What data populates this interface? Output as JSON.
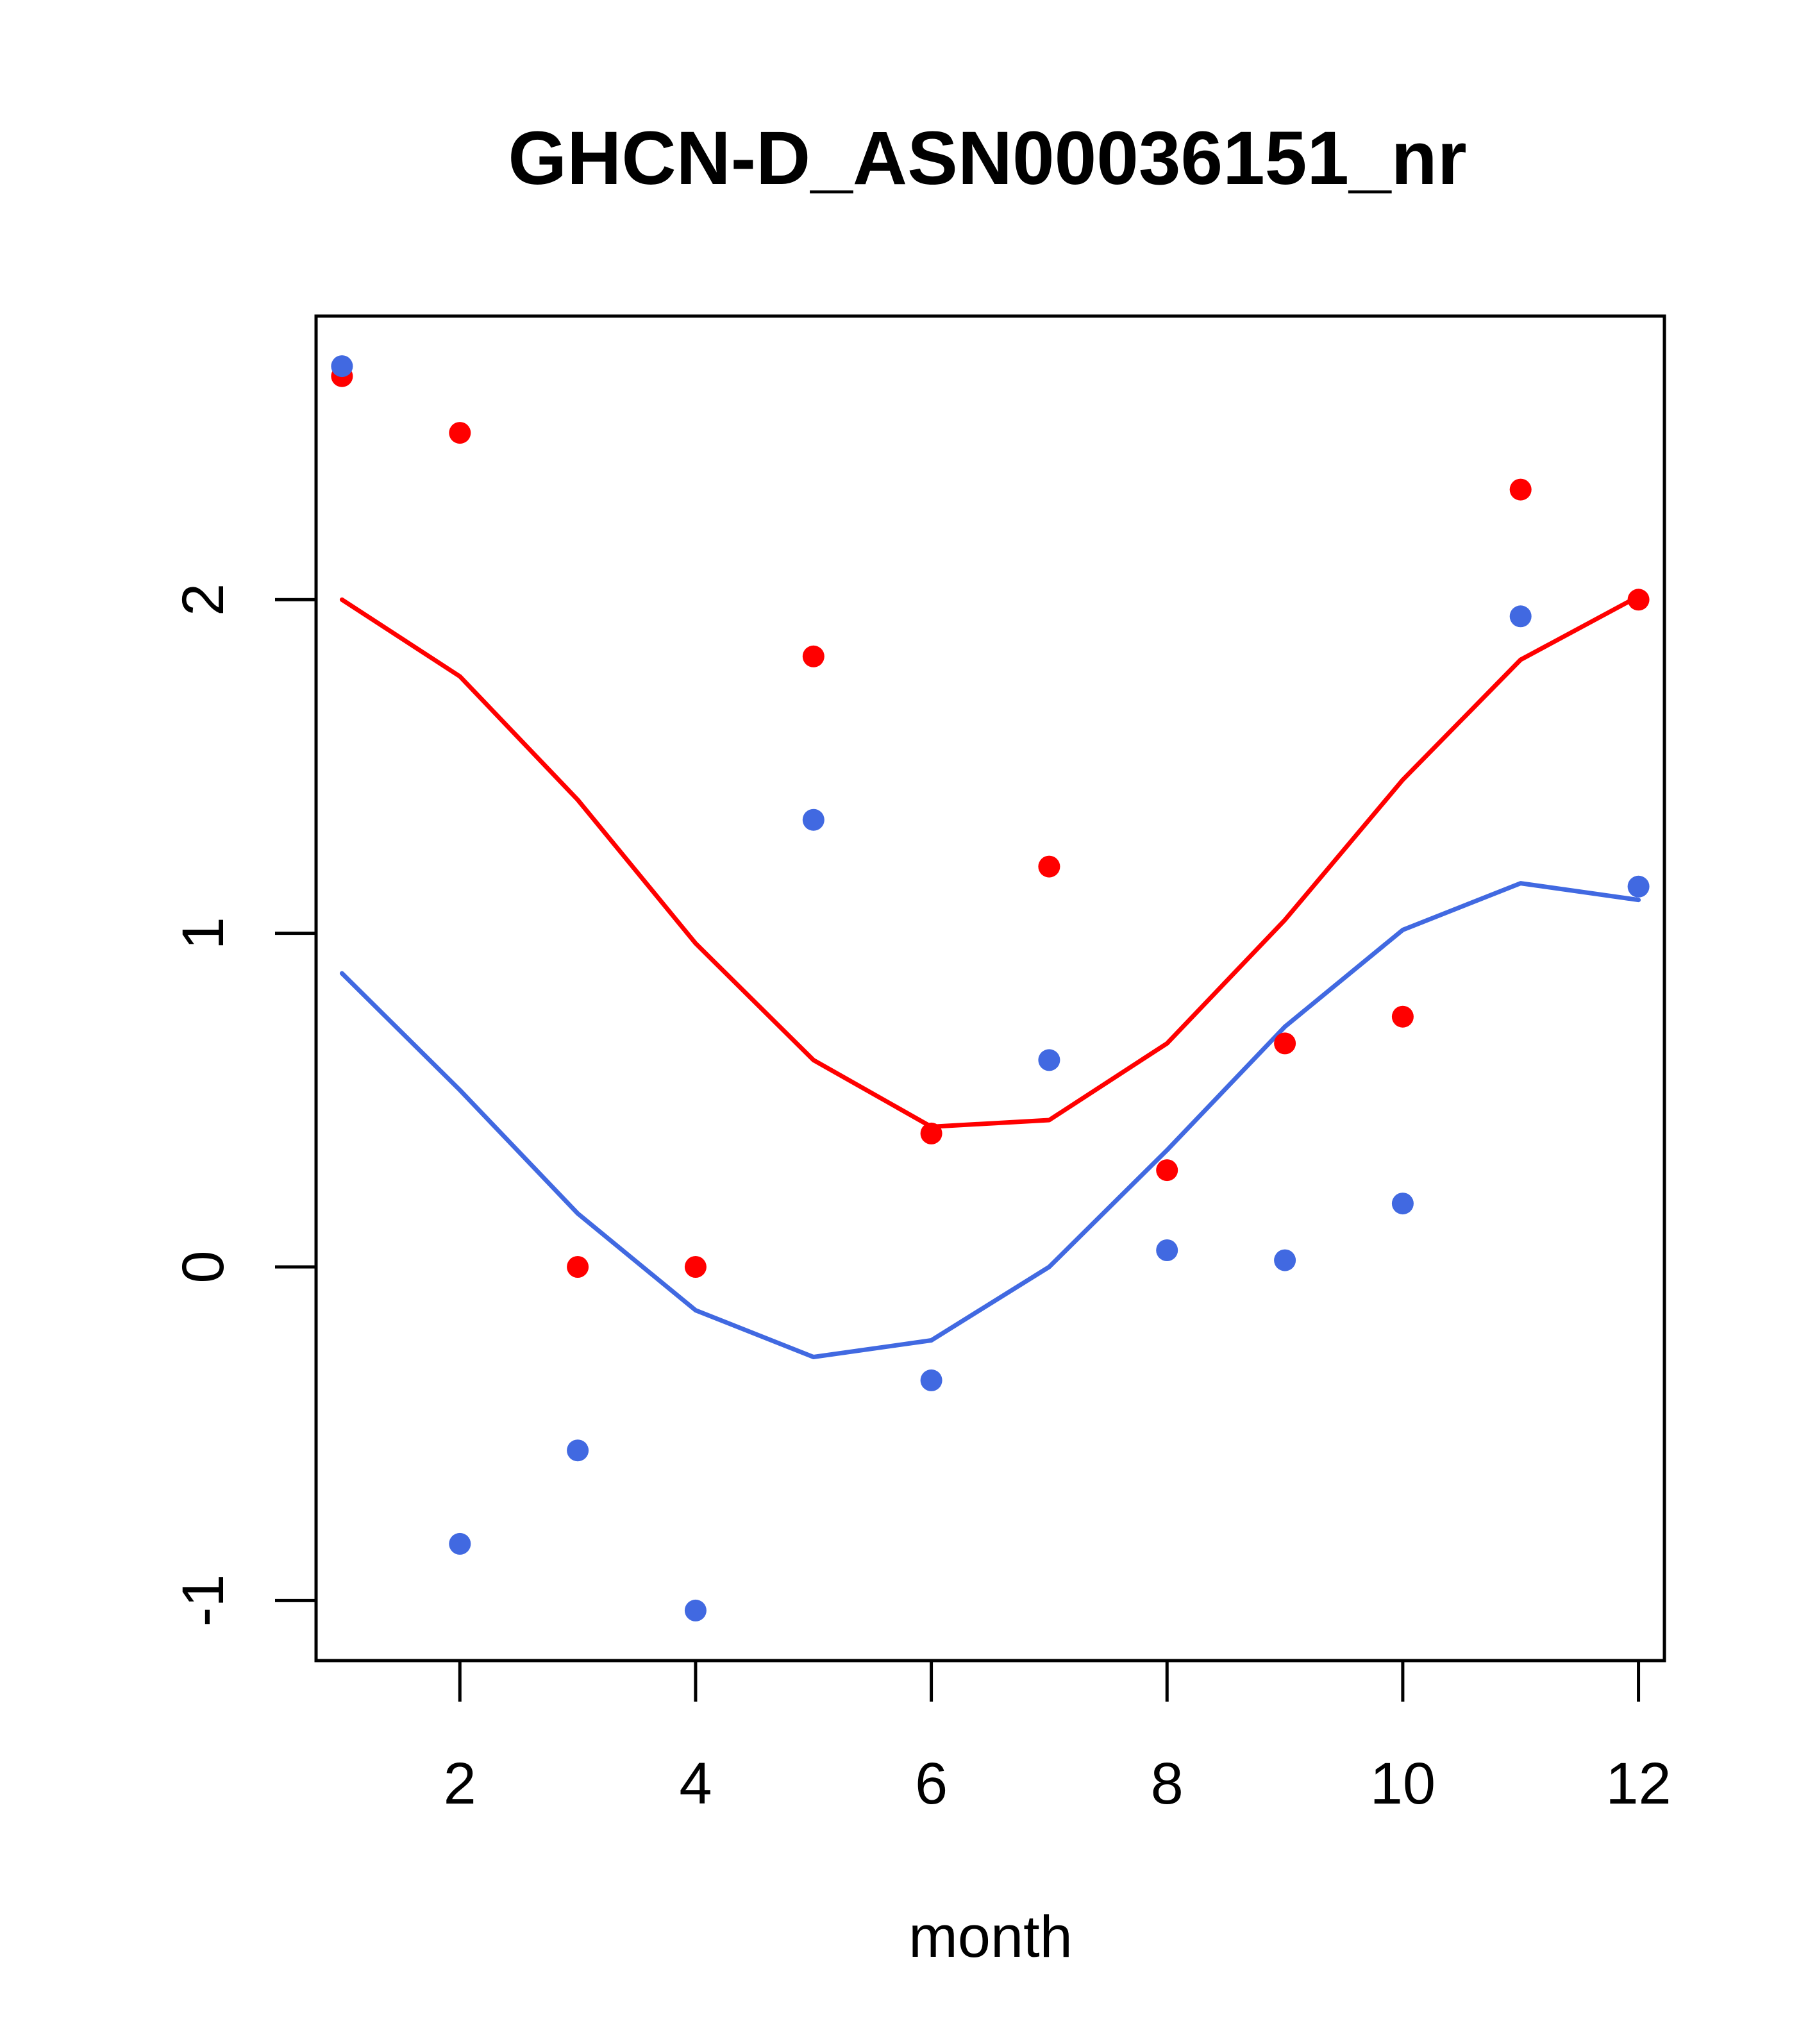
{
  "chart_data": {
    "type": "scatter",
    "title": "GHCN-D_ASN00036151_nr",
    "xlabel": "month",
    "ylabel": "",
    "xlim": [
      0.78,
      12.22
    ],
    "ylim": [
      -1.18,
      2.85
    ],
    "x_ticks": [
      2,
      4,
      6,
      8,
      10,
      12
    ],
    "x_tick_labels": [
      "2",
      "4",
      "6",
      "8",
      "10",
      "12"
    ],
    "y_ticks": [
      -1,
      0,
      1,
      2
    ],
    "y_tick_labels": [
      "-1",
      "0",
      "1",
      "2"
    ],
    "grid": false,
    "colors": {
      "red": "#ff0000",
      "blue": "#4169e1",
      "axis": "#000000",
      "background": "#ffffff"
    },
    "series": [
      {
        "name": "red-points",
        "kind": "points",
        "color": "#ff0000",
        "x": [
          1,
          2,
          3,
          4,
          5,
          6,
          7,
          8,
          9,
          10,
          11,
          12
        ],
        "y": [
          2.67,
          2.5,
          0.0,
          0.0,
          1.83,
          0.4,
          1.2,
          0.29,
          0.67,
          0.75,
          2.33,
          2.0
        ]
      },
      {
        "name": "blue-points",
        "kind": "points",
        "color": "#4169e1",
        "x": [
          1,
          2,
          3,
          4,
          5,
          6,
          7,
          8,
          9,
          10,
          11,
          12
        ],
        "y": [
          2.7,
          -0.83,
          -0.55,
          -1.03,
          1.34,
          -0.34,
          0.62,
          0.05,
          0.02,
          0.19,
          1.95,
          1.14
        ]
      },
      {
        "name": "red-line",
        "kind": "line",
        "color": "#ff0000",
        "x": [
          1,
          2,
          3,
          4,
          5,
          6,
          7,
          8,
          9,
          10,
          11,
          12
        ],
        "y": [
          2.0,
          1.77,
          1.4,
          0.97,
          0.62,
          0.42,
          0.44,
          0.67,
          1.04,
          1.46,
          1.82,
          2.01
        ]
      },
      {
        "name": "blue-line",
        "kind": "line",
        "color": "#4169e1",
        "x": [
          1,
          2,
          3,
          4,
          5,
          6,
          7,
          8,
          9,
          10,
          11,
          12
        ],
        "y": [
          0.88,
          0.53,
          0.16,
          -0.13,
          -0.27,
          -0.22,
          0.0,
          0.35,
          0.72,
          1.01,
          1.15,
          1.1
        ]
      }
    ]
  }
}
